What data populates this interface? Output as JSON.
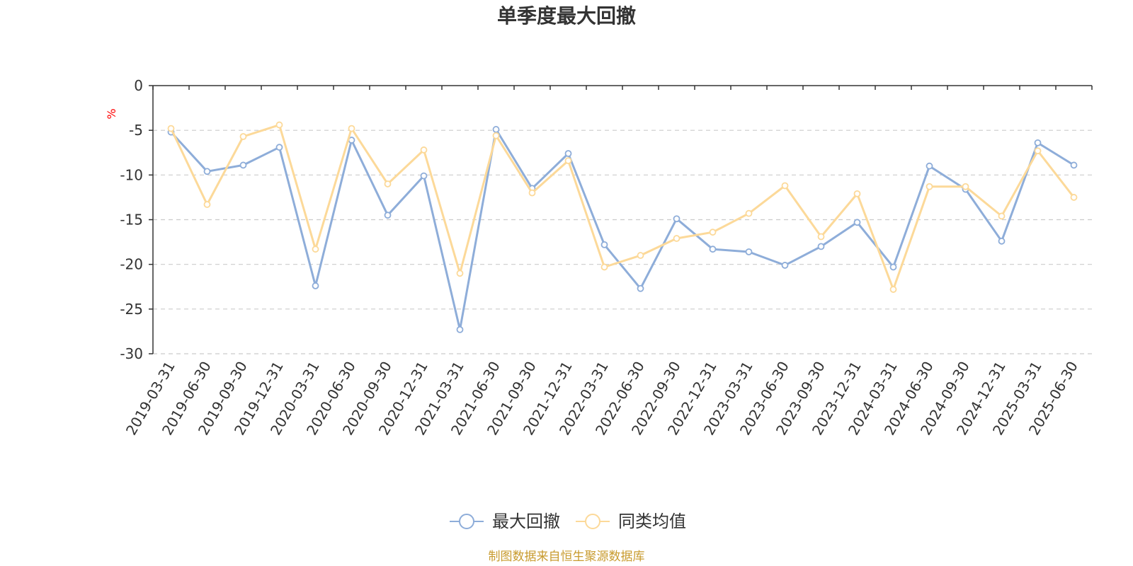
{
  "chart_data": {
    "type": "line",
    "title": "单季度最大回撤",
    "ylabel": "%",
    "ylim": [
      -30,
      0
    ],
    "yticks": [
      0,
      -5,
      -10,
      -15,
      -20,
      -25,
      -30
    ],
    "grid": "horizontal dashed",
    "legend_position": "bottom",
    "categories": [
      "2019-03-31",
      "2019-06-30",
      "2019-09-30",
      "2019-12-31",
      "2020-03-31",
      "2020-06-30",
      "2020-09-30",
      "2020-12-31",
      "2021-03-31",
      "2021-06-30",
      "2021-09-30",
      "2021-12-31",
      "2022-03-31",
      "2022-06-30",
      "2022-09-30",
      "2022-12-31",
      "2023-03-31",
      "2023-06-30",
      "2023-09-30",
      "2023-12-31",
      "2024-03-31",
      "2024-06-30",
      "2024-09-30",
      "2024-12-31",
      "2025-03-31",
      "2025-06-30"
    ],
    "series": [
      {
        "name": "最大回撤",
        "color": "#8eadd9",
        "values": [
          -5.2,
          -9.6,
          -8.9,
          -6.9,
          -22.4,
          -6.1,
          -14.5,
          -10.1,
          -27.3,
          -4.9,
          -11.5,
          -7.6,
          -17.8,
          -22.7,
          -14.9,
          -18.3,
          -18.6,
          -20.1,
          -18.0,
          -15.3,
          -20.3,
          -9.0,
          -11.6,
          -17.4,
          -6.4,
          -8.9
        ]
      },
      {
        "name": "同类均值",
        "color": "#fcd999",
        "values": [
          -4.8,
          -13.3,
          -5.7,
          -4.4,
          -18.3,
          -4.8,
          -11.0,
          -7.2,
          -21.0,
          -5.6,
          -12.0,
          -8.4,
          -20.3,
          -19.0,
          -17.1,
          -16.4,
          -14.3,
          -11.2,
          -16.9,
          -12.1,
          -22.8,
          -11.3,
          -11.3,
          -14.6,
          -7.3,
          -12.5
        ]
      }
    ]
  },
  "footer": {
    "source_note": "制图数据来自恒生聚源数据库"
  },
  "colors": {
    "title": "#333333",
    "axis": "#333333",
    "grid": "#cccccc",
    "unit": "#ff0000",
    "source": "#c89b2e"
  }
}
